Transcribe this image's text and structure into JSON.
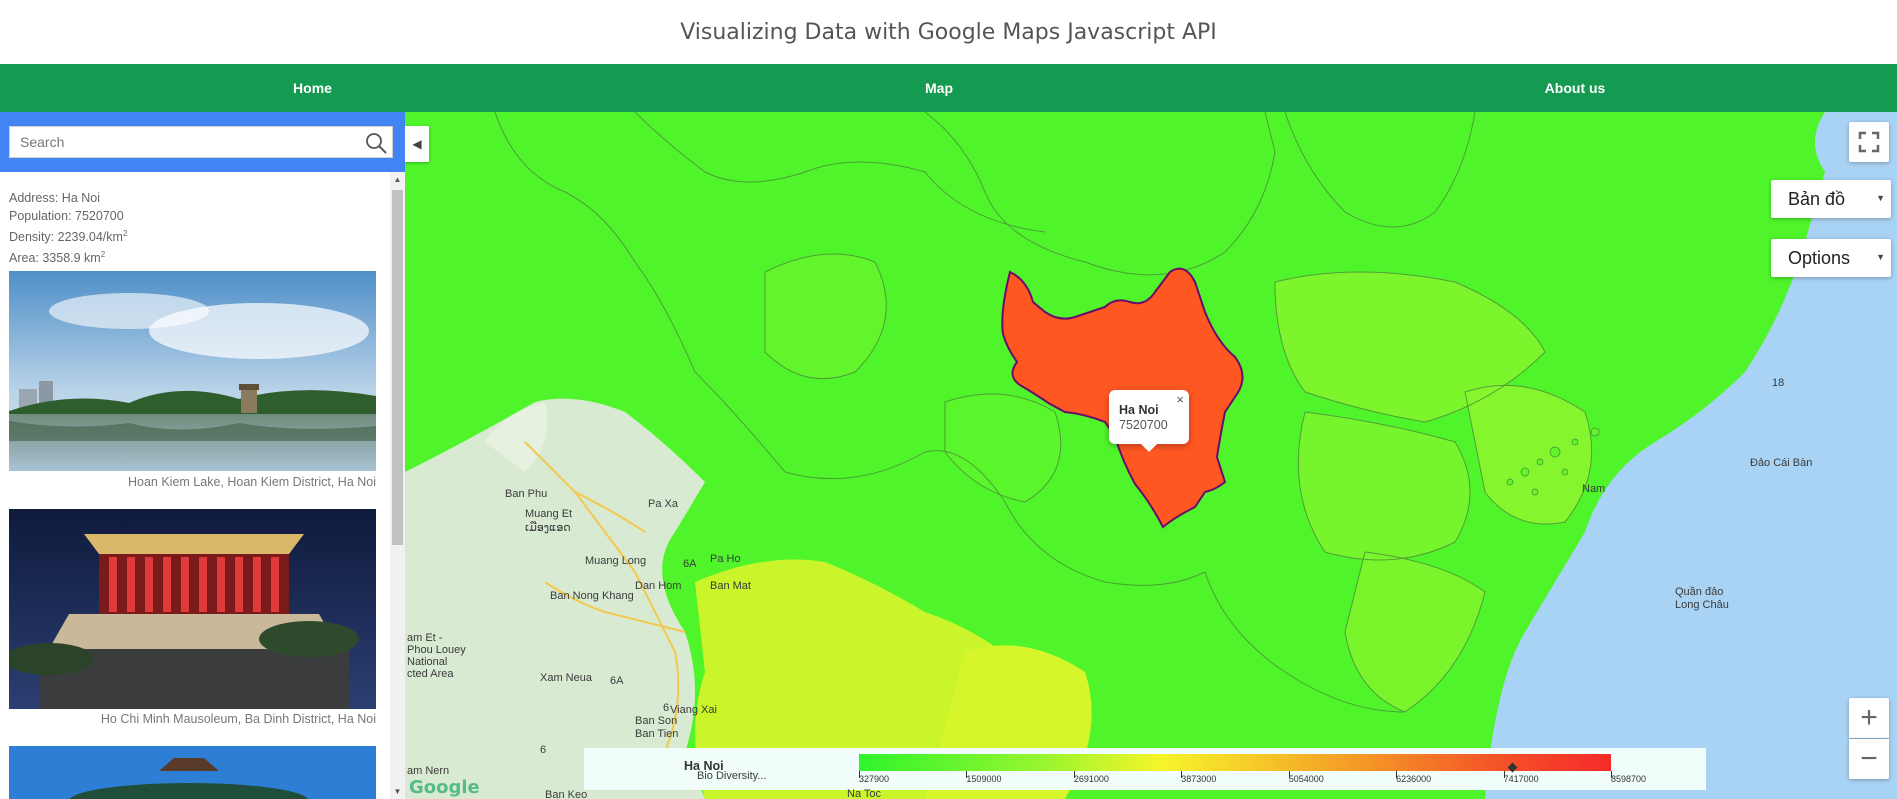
{
  "header": {
    "title": "Visualizing Data with Google Maps Javascript API"
  },
  "nav": {
    "home": "Home",
    "map": "Map",
    "about": "About us"
  },
  "sidebar": {
    "search_placeholder": "Search",
    "info": {
      "address": "Address: Ha Noi",
      "population": "Population: 7520700",
      "density": "Density: 2239.04/km",
      "density_sup": "2",
      "area": "Area: 3358.9 km",
      "area_sup": "2"
    },
    "photos": [
      {
        "caption": "Hoan Kiem Lake, Hoan Kiem District, Ha Noi"
      },
      {
        "caption": "Ho Chi Minh Mausoleum, Ba Dinh District, Ha Noi"
      }
    ]
  },
  "map": {
    "map_type": "Bản đồ",
    "options": "Options",
    "popup": {
      "name": "Ha Noi",
      "value": "7520700",
      "close": "×"
    },
    "legend": {
      "name": "Ha Noi",
      "marker_value": 7520700,
      "min": 327900,
      "max": 8598700,
      "ticks": [
        "327900",
        "1509000",
        "2691000",
        "3873000",
        "5054000",
        "6236000",
        "7417000",
        "8598700"
      ]
    },
    "labels": [
      "Ban Phu",
      "Pa Xa",
      "Muang Et",
      "ເມືອງແອດ",
      "Muang Long",
      "6A",
      "Pa Ho",
      "Ban Nong Khang",
      "Dan Hom",
      "Ban Mat",
      "am Et -",
      "Phou Louey",
      "National",
      "cted Area",
      "Xam Neua",
      "6A",
      "Viang Xai",
      "6",
      "Ban Son",
      "Ban Tien",
      "6",
      "am Nern",
      "Ban Keo",
      "Bio Diversity...",
      "Na Toc",
      "Quần đảo",
      "Long Châu",
      "Nam",
      "Đảo Cái Bàn",
      "18"
    ],
    "google_logo": "Google"
  },
  "colors": {
    "nav": "#159a52",
    "search_bar": "#4384f5",
    "map_green": "#4ff52a",
    "highlight": "#ff5722",
    "highlight_border": "#6a0d6a",
    "sea": "#a9d3f5"
  }
}
